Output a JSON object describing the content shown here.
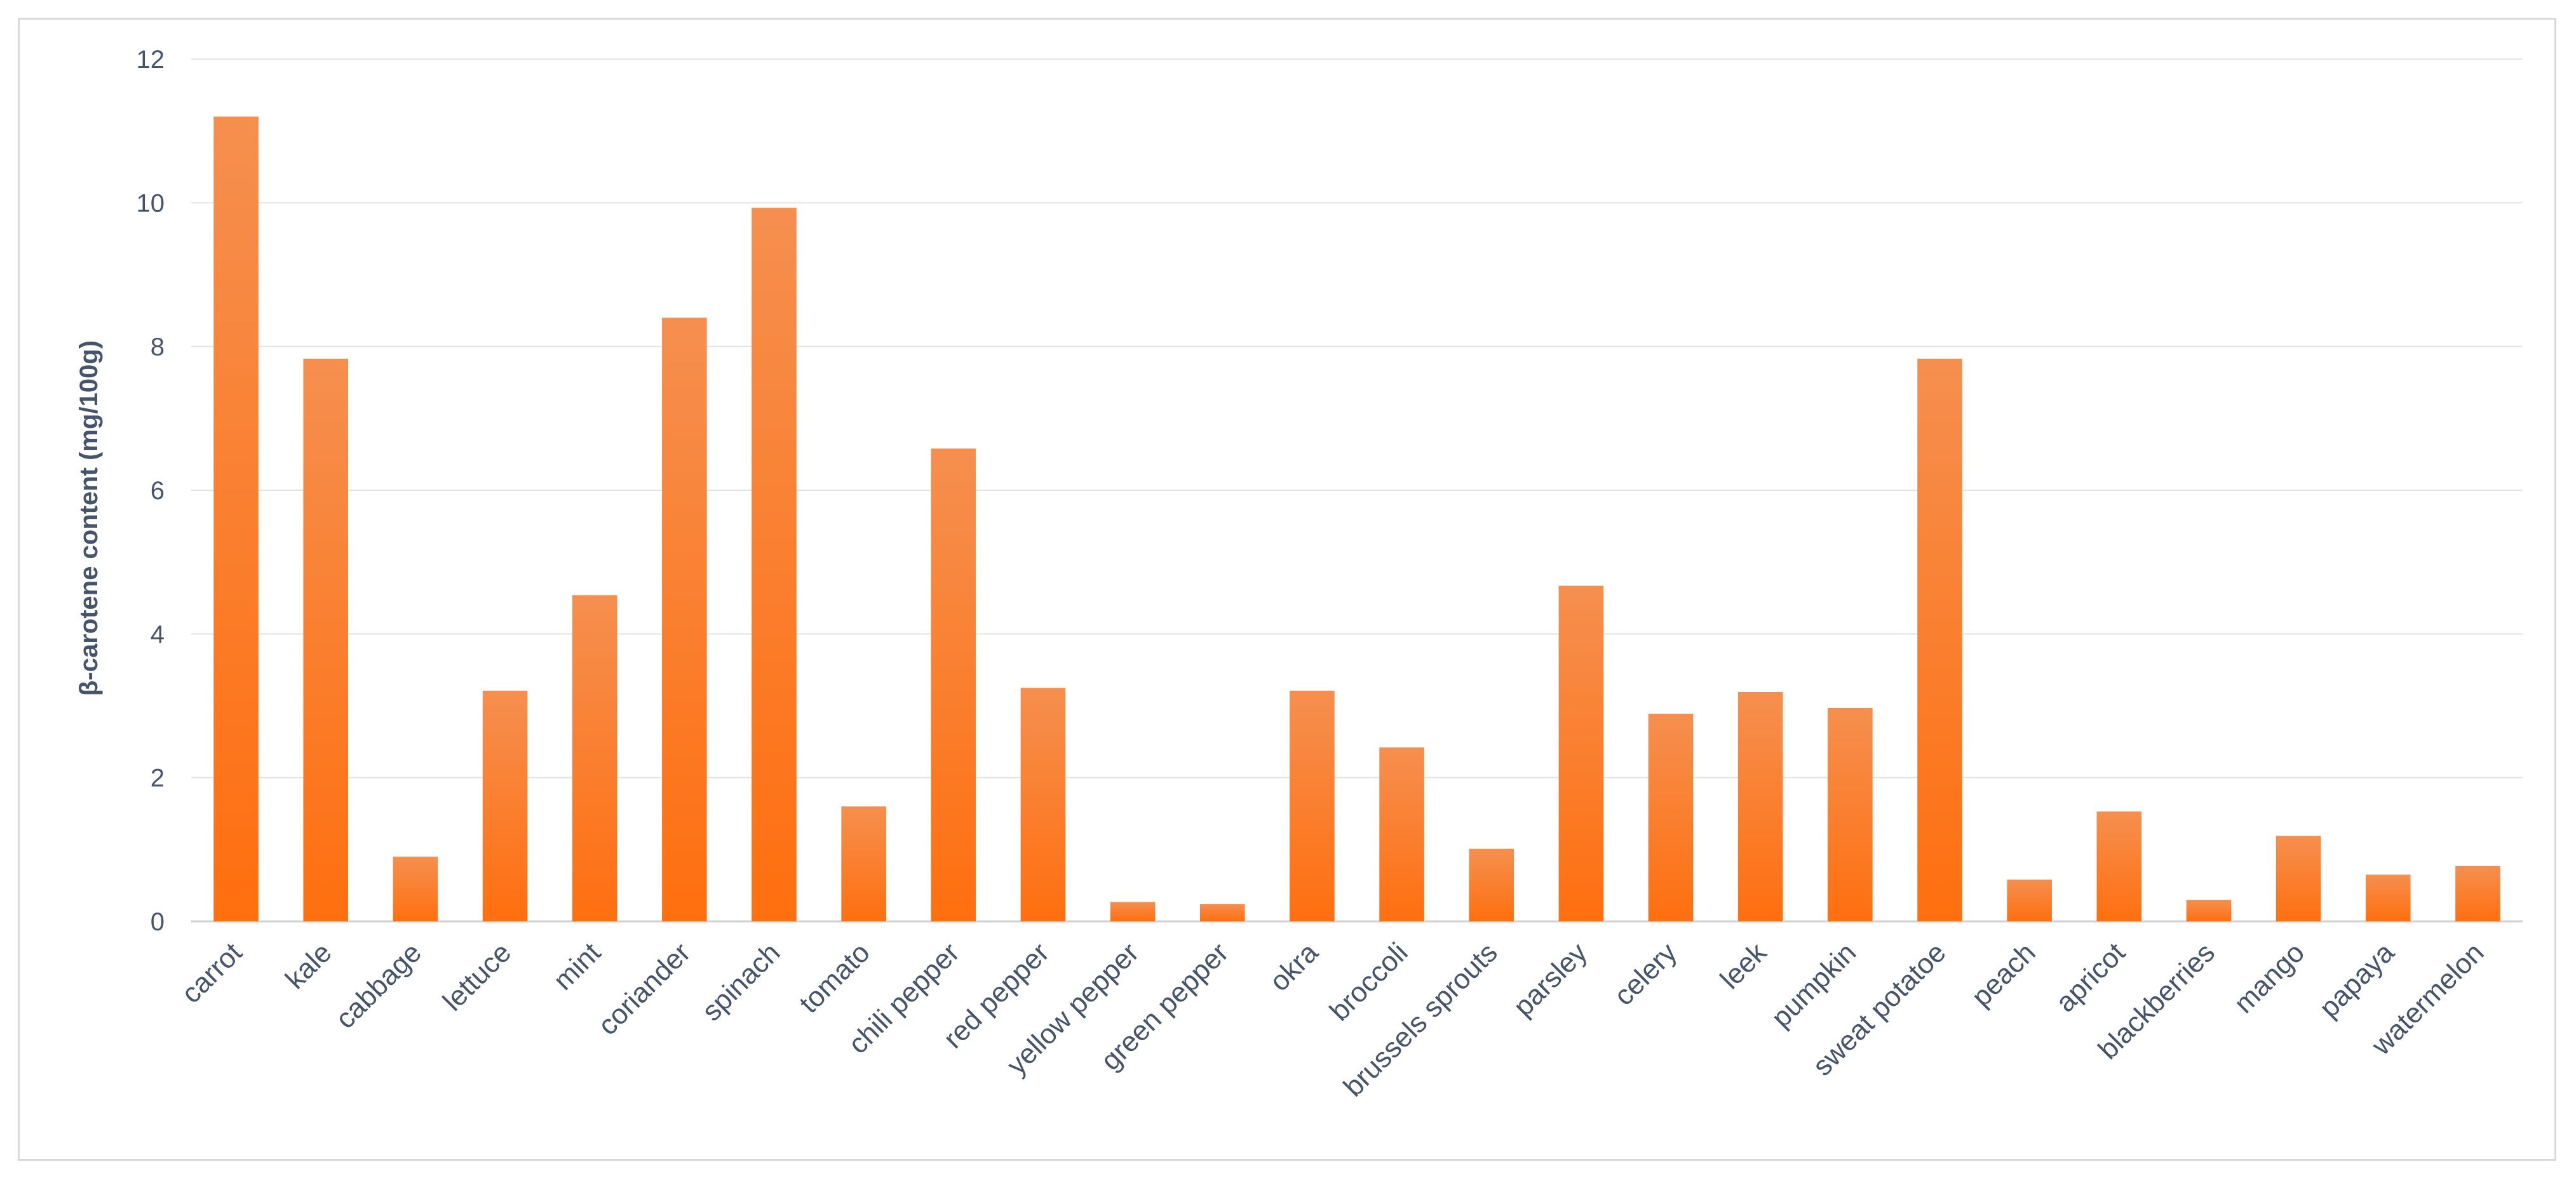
{
  "chart_data": {
    "type": "bar",
    "title": "",
    "xlabel": "",
    "ylabel": "β-carotene content (mg/100g)",
    "ylim": [
      0,
      12
    ],
    "yticks": [
      0,
      2,
      4,
      6,
      8,
      10,
      12
    ],
    "grid": true,
    "legend": "none",
    "bar_color_top": "#f58f4f",
    "bar_color_bottom": "#ff6f0f",
    "categories": [
      "carrot",
      "kale",
      "cabbage",
      "lettuce",
      "mint",
      "coriander",
      "spinach",
      "tomato",
      "chili pepper",
      "red pepper",
      "yellow pepper",
      "green pepper",
      "okra",
      "broccoli",
      "brussels sprouts",
      "parsley",
      "celery",
      "leek",
      "pumpkin",
      "sweat potatoe",
      "peach",
      "apricot",
      "blackberries",
      "mango",
      "papaya",
      "watermelon"
    ],
    "values": [
      11.2,
      7.83,
      0.9,
      3.21,
      4.54,
      8.4,
      9.93,
      1.6,
      6.58,
      3.25,
      0.27,
      0.24,
      3.21,
      2.42,
      1.01,
      4.67,
      2.89,
      3.19,
      2.97,
      7.83,
      0.58,
      1.53,
      0.3,
      1.19,
      0.65,
      0.77
    ]
  }
}
